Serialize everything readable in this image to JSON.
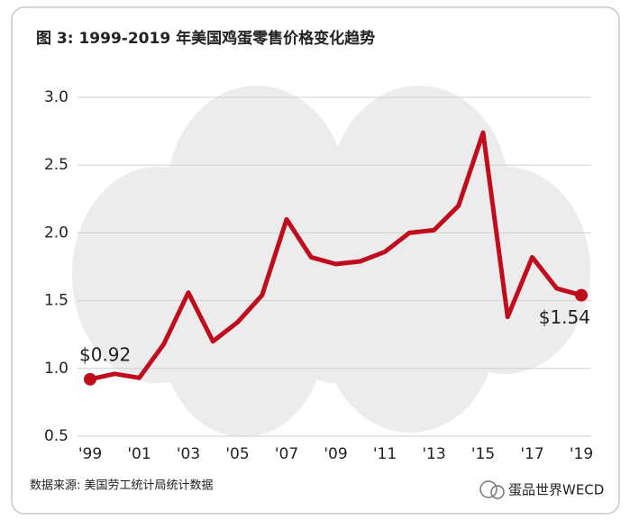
{
  "chart_data": {
    "type": "line",
    "title": "图 3: 1999-2019 年美国鸡蛋零售价格变化趋势",
    "source": "数据来源: 美国劳工统计局统计数据",
    "watermark": "蛋品世界WECD",
    "categories": [
      "'99",
      null,
      "'01",
      null,
      "'03",
      null,
      "'05",
      null,
      "'07",
      null,
      "'09",
      null,
      "'11",
      null,
      "'13",
      null,
      "'15",
      null,
      "'17",
      null,
      "'19"
    ],
    "values": [
      0.92,
      0.96,
      0.93,
      1.18,
      1.56,
      1.2,
      1.34,
      1.54,
      2.1,
      1.82,
      1.77,
      1.79,
      1.86,
      2.0,
      2.02,
      2.2,
      2.74,
      1.38,
      1.82,
      1.59,
      1.54
    ],
    "value_labels": [
      "$0.92",
      null,
      null,
      null,
      null,
      null,
      null,
      null,
      null,
      null,
      null,
      null,
      null,
      null,
      null,
      null,
      null,
      null,
      null,
      null,
      "$1.54"
    ],
    "color": "#c00d1e",
    "ylim": [
      0.5,
      3.0
    ],
    "yticks": [
      {
        "value": 0.5,
        "label": "0.5"
      },
      {
        "value": 1,
        "label": "1.0"
      },
      1.5,
      {
        "value": 2,
        "label": "2.0"
      },
      2.5,
      {
        "value": 3,
        "label": "3.0"
      }
    ],
    "grid": true
  }
}
